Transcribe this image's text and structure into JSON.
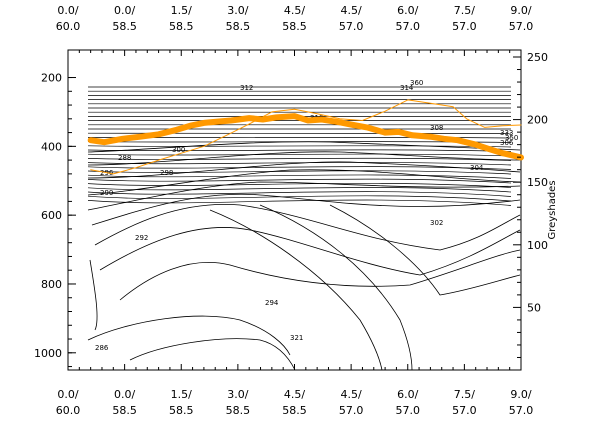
{
  "chart_data": {
    "type": "contour",
    "title": "",
    "x_ticks": [
      {
        "top": "0.0/",
        "bottom": "60.0"
      },
      {
        "top": "0.0/",
        "bottom": "58.5"
      },
      {
        "top": "1.5/",
        "bottom": "58.5"
      },
      {
        "top": "3.0/",
        "bottom": "58.5"
      },
      {
        "top": "4.5/",
        "bottom": "58.5"
      },
      {
        "top": "4.5/",
        "bottom": "57.0"
      },
      {
        "top": "6.0/",
        "bottom": "57.0"
      },
      {
        "top": "7.5/",
        "bottom": "57.0"
      },
      {
        "top": "9.0/",
        "bottom": "57.0"
      }
    ],
    "y_left": {
      "range": [
        1050,
        120
      ],
      "ticks": [
        200,
        400,
        600,
        800,
        1000
      ]
    },
    "y_right": {
      "label": "Greyshades",
      "range": [
        0,
        250
      ],
      "ticks": [
        50,
        100,
        150,
        200,
        250
      ]
    },
    "contour_labels": [
      "286",
      "288",
      "290",
      "292",
      "294",
      "296",
      "298",
      "300",
      "302",
      "304",
      "306",
      "308",
      "310",
      "312",
      "314",
      "321",
      "333",
      "350",
      "360"
    ],
    "series": [
      {
        "name": "",
        "color": "#ff9900",
        "style": "thick",
        "x": [
          0.05,
          0.08,
          0.12,
          0.16,
          0.2,
          0.24,
          0.27,
          0.3,
          0.33,
          0.36,
          0.4,
          0.43,
          0.46,
          0.5,
          0.53,
          0.56,
          0.6,
          0.63,
          0.66,
          0.7,
          0.73,
          0.76,
          0.8,
          0.83,
          0.86,
          0.9,
          0.93,
          0.96,
          1.0
        ],
        "y": [
          382,
          388,
          378,
          372,
          365,
          352,
          340,
          332,
          328,
          325,
          318,
          322,
          316,
          312,
          325,
          322,
          330,
          338,
          345,
          360,
          358,
          368,
          372,
          378,
          382,
          395,
          408,
          420,
          432
        ]
      },
      {
        "name": "",
        "color": "#ff9900",
        "style": "thin",
        "x": [
          0.05,
          0.1,
          0.15,
          0.2,
          0.25,
          0.3,
          0.35,
          0.4,
          0.45,
          0.5,
          0.55,
          0.6,
          0.65,
          0.7,
          0.75,
          0.8,
          0.85,
          0.88,
          0.92,
          0.96,
          1.0
        ],
        "y": [
          468,
          480,
          462,
          440,
          420,
          400,
          368,
          335,
          300,
          292,
          305,
          320,
          325,
          298,
          265,
          275,
          285,
          320,
          345,
          340,
          338
        ]
      }
    ]
  }
}
